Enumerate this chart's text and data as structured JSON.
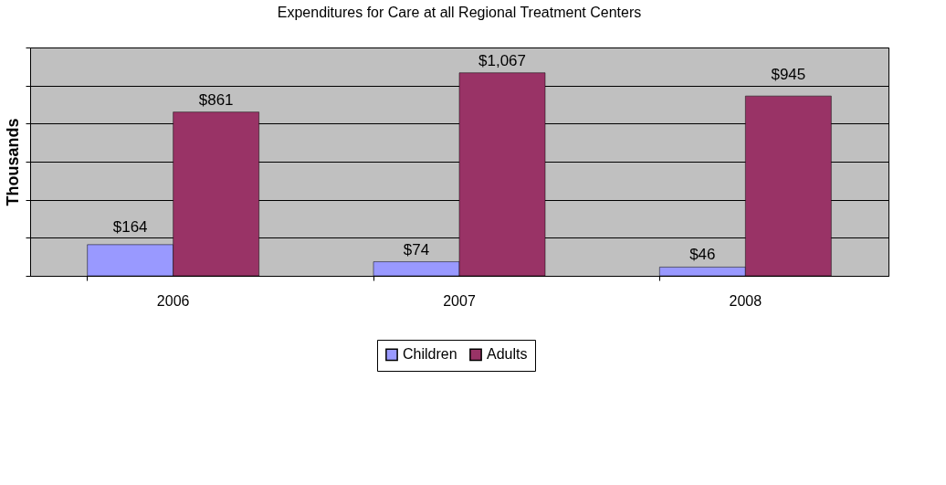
{
  "chart_data": {
    "type": "bar",
    "title": "Expenditures for Care at all Regional Treatment Centers",
    "ylabel": "Thousands",
    "categories": [
      "2006",
      "2007",
      "2008"
    ],
    "series": [
      {
        "name": "Children",
        "color": "#9999ff",
        "values": [
          164,
          74,
          46
        ],
        "value_labels": [
          "$164",
          "$74",
          "$46"
        ]
      },
      {
        "name": "Adults",
        "color": "#993366",
        "values": [
          861,
          1067,
          945
        ],
        "value_labels": [
          "$861",
          "$1,067",
          "$945"
        ]
      }
    ],
    "ylim": [
      0,
      1200
    ],
    "yticks": [
      {
        "value": 0,
        "label": null
      },
      {
        "value": 200,
        "label": null
      },
      {
        "value": 400,
        "label": null
      },
      {
        "value": 600,
        "label": null
      },
      {
        "value": 800,
        "label": null
      },
      {
        "value": 1000,
        "label": null
      },
      {
        "value": 1200,
        "label": null
      }
    ],
    "tick_labels": "x",
    "grid": "y",
    "legend": "bottom"
  }
}
